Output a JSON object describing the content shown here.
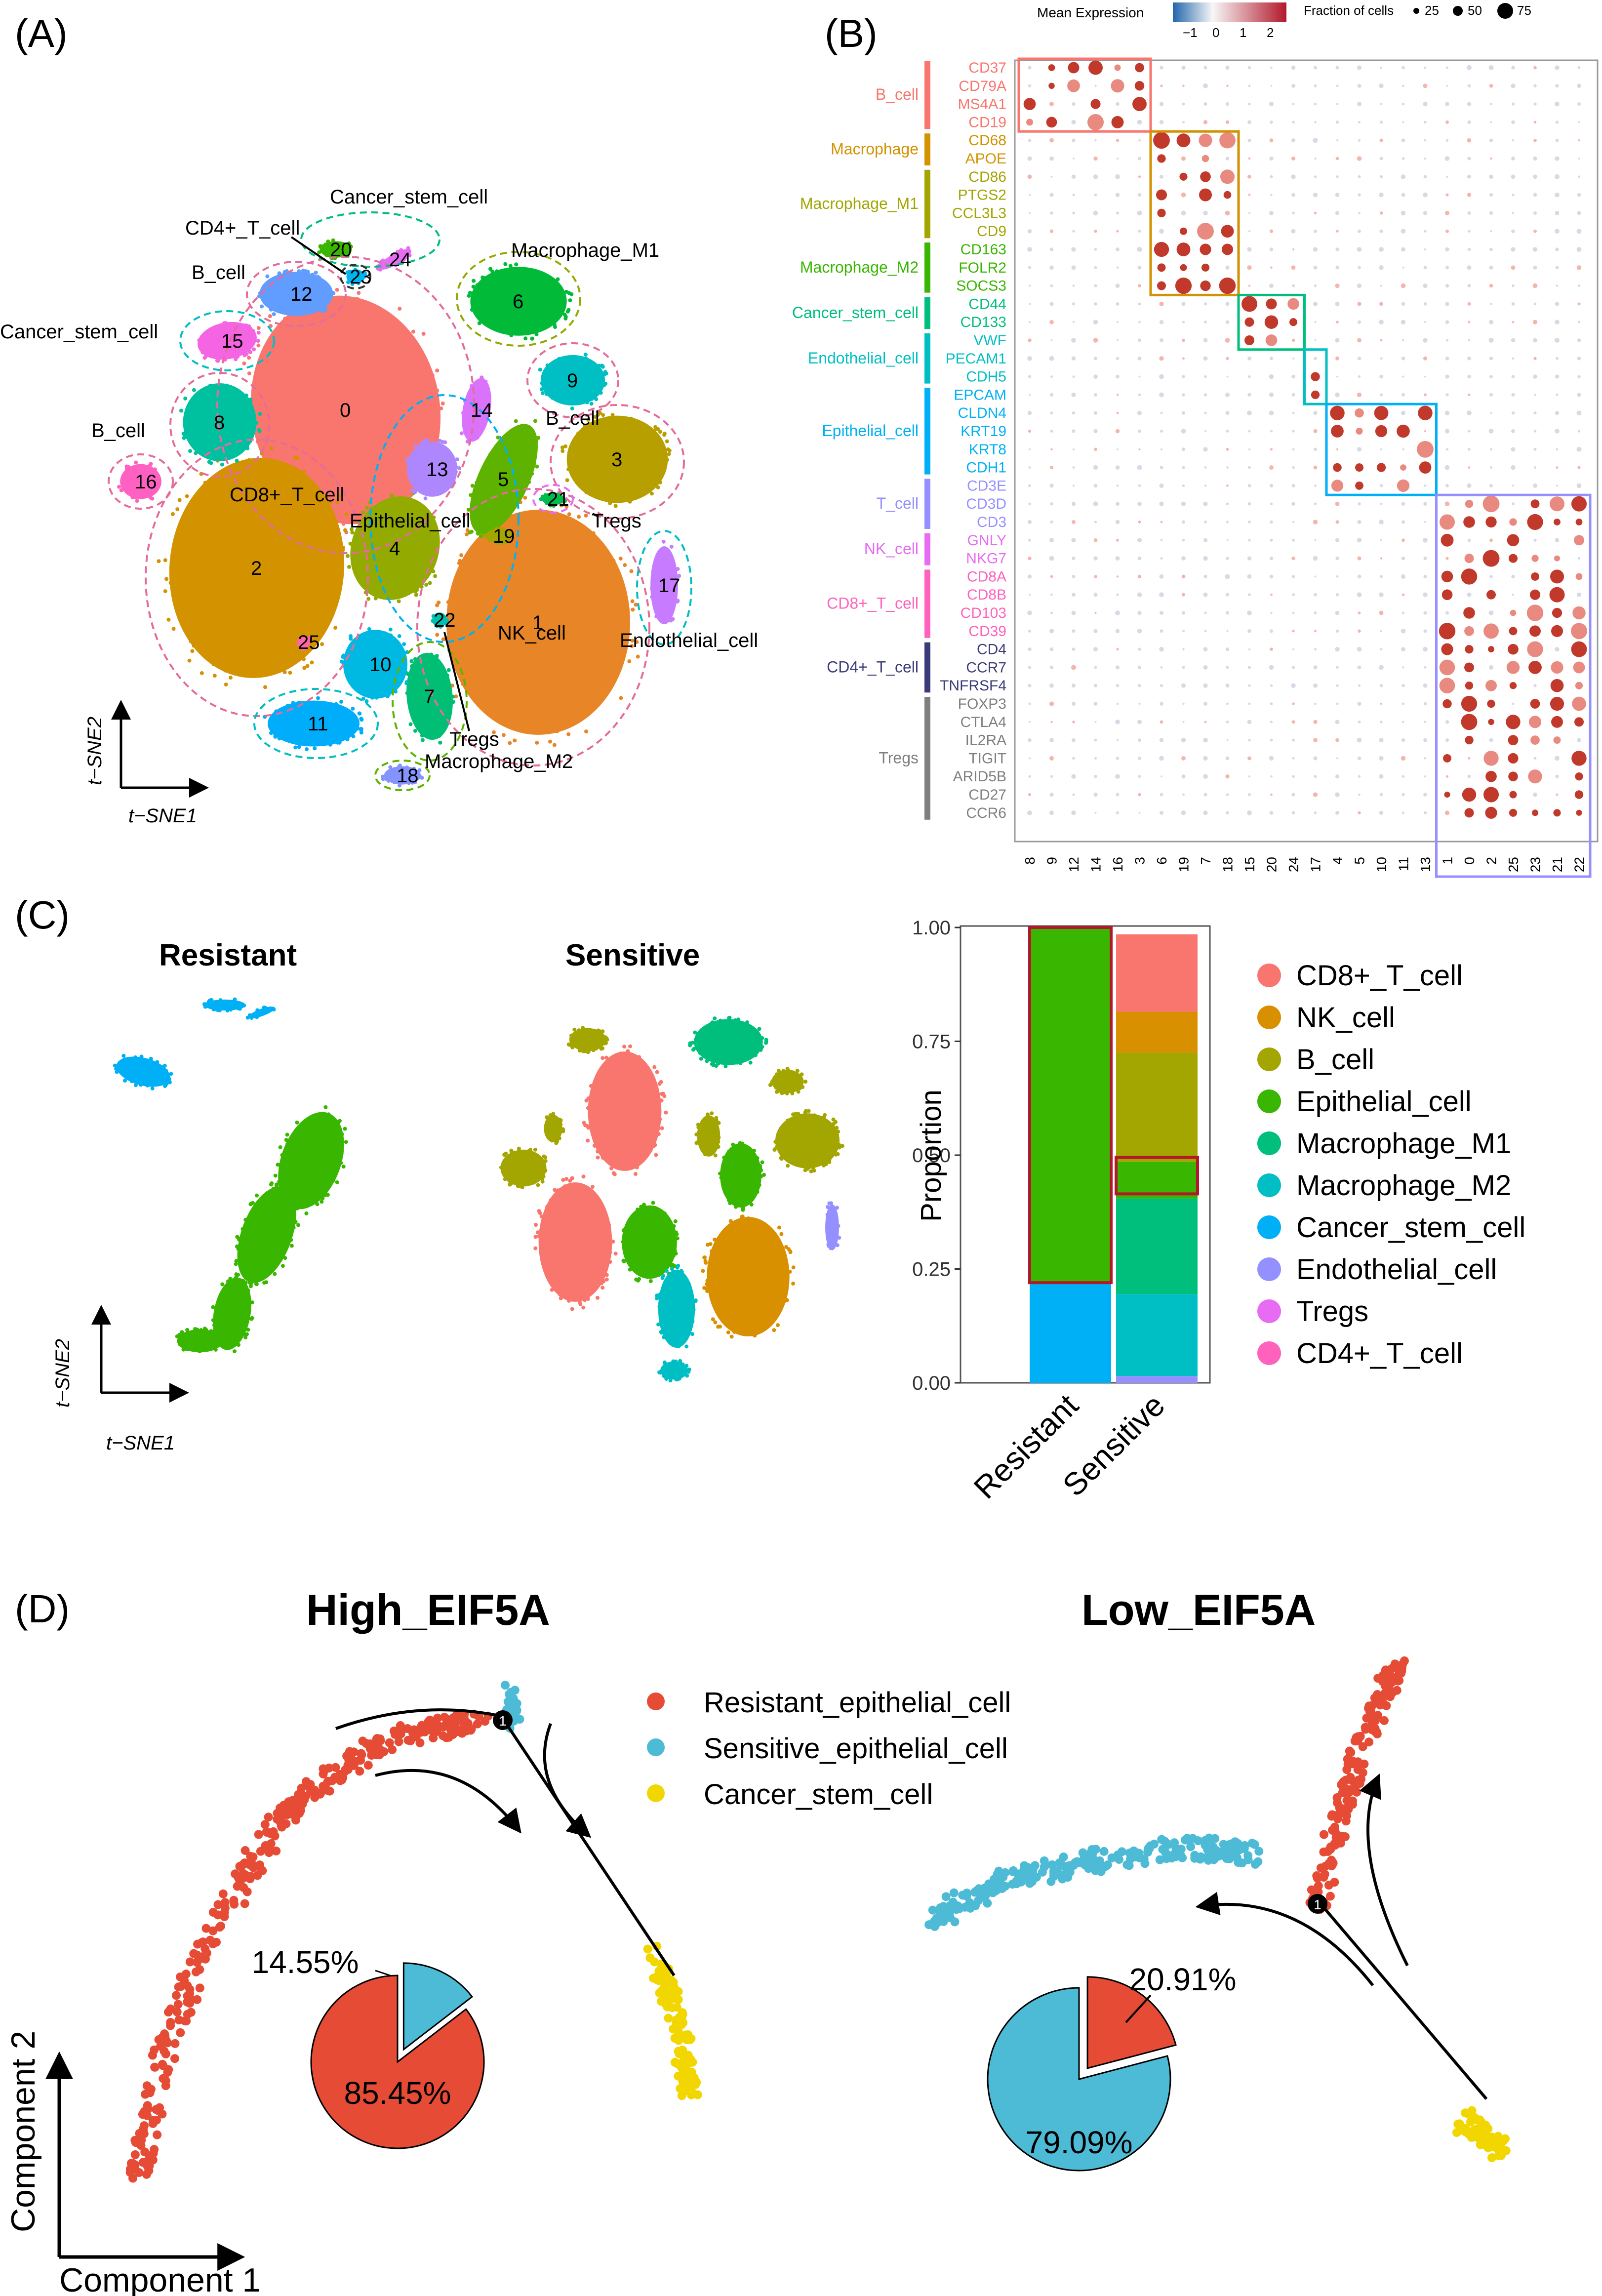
{
  "panels": {
    "A": {
      "label": "(A)",
      "xaxis": "t−SNE1",
      "yaxis": "t−SNE2",
      "cluster_ids": [
        "0",
        "1",
        "2",
        "3",
        "4",
        "5",
        "6",
        "7",
        "8",
        "9",
        "10",
        "11",
        "12",
        "13",
        "14",
        "15",
        "16",
        "17",
        "18",
        "19",
        "20",
        "21",
        "22",
        "23",
        "24",
        "25"
      ],
      "cell_type_labels": [
        "Cancer_stem_cell",
        "CD4+_T_cell",
        "B_cell",
        "Macrophage_M1",
        "Cancer_stem_cell",
        "B_cell",
        "B_cell",
        "CD8+_T_cell",
        "Epithelial_cell",
        "Tregs",
        "NK_cell",
        "Endothelial_cell",
        "Tregs",
        "Macrophage_M2"
      ],
      "cluster_colors": [
        "#F8766D",
        "#E88526",
        "#D39200",
        "#B79F00",
        "#93AA00",
        "#5EB300",
        "#00BA38",
        "#00BF74",
        "#00C19F",
        "#00BFC4",
        "#00B9E3",
        "#00ADFA",
        "#619CFF",
        "#AE87FF",
        "#DB72FB",
        "#F564E3",
        "#FF61C3",
        "#C77CFF",
        "#8494FF",
        "#A3A500",
        "#39B600",
        "#00BB4E",
        "#00C0AF",
        "#00B4F0",
        "#E76BF3",
        "#FF67A4"
      ]
    },
    "B": {
      "label": "(B)",
      "legend_mean_title": "Mean Expression",
      "legend_mean_ticks": [
        "−1",
        "0",
        "1",
        "2"
      ],
      "legend_frac_title": "Fraction of cells",
      "legend_frac_ticks": [
        "25",
        "50",
        "75"
      ],
      "groups": [
        {
          "name": "B_cell",
          "color": "#F8766D",
          "genes": [
            "CD37",
            "CD79A",
            "MS4A1",
            "CD19"
          ]
        },
        {
          "name": "Macrophage",
          "color": "#D39200",
          "genes": [
            "CD68",
            "APOE"
          ]
        },
        {
          "name": "Macrophage_M1",
          "color": "#A3A500",
          "genes": [
            "CD86",
            "PTGS2",
            "CCL3L3",
            "CD9"
          ]
        },
        {
          "name": "Macrophage_M2",
          "color": "#39B600",
          "genes": [
            "CD163",
            "FOLR2",
            "SOCS3"
          ]
        },
        {
          "name": "Cancer_stem_cell",
          "color": "#00BF7D",
          "genes": [
            "CD44",
            "CD133"
          ]
        },
        {
          "name": "Endothelial_cell",
          "color": "#00BFC4",
          "genes": [
            "VWF",
            "PECAM1",
            "CDH5"
          ]
        },
        {
          "name": "Epithelial_cell",
          "color": "#00B0F6",
          "genes": [
            "EPCAM",
            "CLDN4",
            "KRT19",
            "KRT8",
            "CDH1"
          ]
        },
        {
          "name": "T_cell",
          "color": "#9590FF",
          "genes": [
            "CD3E",
            "CD3D",
            "CD3"
          ]
        },
        {
          "name": "NK_cell",
          "color": "#E76BF3",
          "genes": [
            "GNLY",
            "NKG7"
          ]
        },
        {
          "name": "CD8+_T_cell",
          "color": "#FF62BC",
          "genes": [
            "CD8A",
            "CD8B",
            "CD103",
            "CD39"
          ]
        },
        {
          "name": "CD4+_T_cell",
          "color": "#3B3B7A",
          "genes": [
            "CD4",
            "CCR7",
            "TNFRSF4"
          ]
        },
        {
          "name": "Tregs",
          "color": "#7F7F7F",
          "genes": [
            "FOXP3",
            "CTLA4",
            "IL2RA",
            "TIGIT",
            "ARID5B",
            "CD27",
            "CCR6"
          ]
        }
      ],
      "clusters": [
        "8",
        "9",
        "12",
        "14",
        "16",
        "3",
        "6",
        "19",
        "7",
        "18",
        "15",
        "20",
        "24",
        "17",
        "4",
        "5",
        "10",
        "11",
        "13",
        "1",
        "0",
        "2",
        "25",
        "23",
        "21",
        "22"
      ]
    },
    "C": {
      "label": "(C)",
      "title_left": "Resistant",
      "title_right": "Sensitive",
      "xaxis": "t−SNE1",
      "yaxis": "t−SNE2"
    },
    "D": {
      "label": "(D)",
      "title_left": "High_EIF5A",
      "title_right": "Low_EIF5A",
      "xaxis": "Component 1",
      "yaxis": "Component 2",
      "legend": [
        {
          "name": "Resistant_epithelial_cell",
          "color": "#E64B35"
        },
        {
          "name": "Sensitive_epithelial_cell",
          "color": "#4DBBD5"
        },
        {
          "name": "Cancer_stem_cell",
          "color": "#F2D600"
        }
      ],
      "branch_label": "1",
      "pie_high": [
        {
          "name": "Sensitive",
          "value": 14.55,
          "label": "14.55%",
          "color": "#4DBBD5"
        },
        {
          "name": "Resistant",
          "value": 85.45,
          "label": "85.45%",
          "color": "#E64B35"
        }
      ],
      "pie_low": [
        {
          "name": "Resistant",
          "value": 20.91,
          "label": "20.91%",
          "color": "#E64B35"
        },
        {
          "name": "Sensitive",
          "value": 79.09,
          "label": "79.09%",
          "color": "#4DBBD5"
        }
      ]
    }
  },
  "chart_data": {
    "type": "bar",
    "stacked": true,
    "title": "",
    "xlabel": "",
    "ylabel": "Proportion",
    "ylim": [
      0,
      1
    ],
    "yticks": [
      "0.00",
      "0.25",
      "0.50",
      "0.75",
      "1.00"
    ],
    "categories": [
      "Resistant",
      "Sensitive"
    ],
    "series": [
      {
        "name": "CD8+_T_cell",
        "color": "#F8766D",
        "values": [
          0.0,
          0.17
        ]
      },
      {
        "name": "NK_cell",
        "color": "#D89000",
        "values": [
          0.0,
          0.09
        ]
      },
      {
        "name": "B_cell",
        "color": "#A3A500",
        "values": [
          0.0,
          0.24
        ]
      },
      {
        "name": "Epithelial_cell",
        "color": "#39B600",
        "values": [
          0.78,
          0.08
        ]
      },
      {
        "name": "Macrophage_M1",
        "color": "#00BF7D",
        "values": [
          0.0,
          0.21
        ]
      },
      {
        "name": "Macrophage_M2",
        "color": "#00BFC4",
        "values": [
          0.0,
          0.18
        ]
      },
      {
        "name": "Cancer_stem_cell",
        "color": "#00B0F6",
        "values": [
          0.22,
          0.0
        ]
      },
      {
        "name": "Endothelial_cell",
        "color": "#9590FF",
        "values": [
          0.0,
          0.015
        ]
      },
      {
        "name": "Tregs",
        "color": "#E76BF3",
        "values": [
          0.0,
          0.0
        ]
      },
      {
        "name": "CD4+_T_cell",
        "color": "#FF62BC",
        "values": [
          0.0,
          0.0
        ]
      }
    ]
  }
}
